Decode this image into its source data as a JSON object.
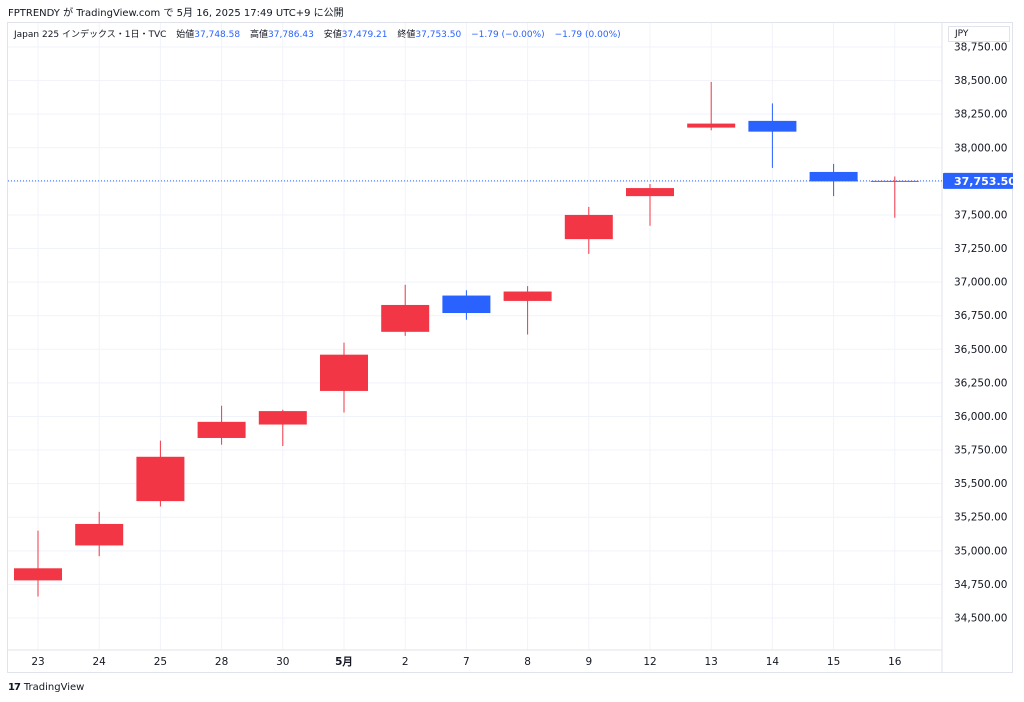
{
  "header": {
    "publish_line": "FPTRENDY が TradingView.com で 5月 16, 2025 17:49 UTC+9 に公開"
  },
  "legend": {
    "symbol": "Japan 225 インデックス・1日・TVC",
    "open_label": "始値",
    "open_value": "37,748.58",
    "high_label": "高値",
    "high_value": "37,786.43",
    "low_label": "安値",
    "low_value": "37,479.21",
    "close_label": "終値",
    "close_value": "37,753.50",
    "change": "−1.79 (−0.00%)",
    "change2": "−1.79 (0.00%)"
  },
  "currency_label": "JPY",
  "footer": {
    "brand": "TradingView",
    "logo": "17"
  },
  "colors": {
    "up": "#f23645",
    "down": "#2962ff",
    "grid": "#f0f3fa",
    "text": "#131722",
    "last_price_bg": "#2962ff"
  },
  "chart_data": {
    "type": "candlestick",
    "title": "Japan 225 インデックス・1日・TVC",
    "x_categories": [
      "23",
      "24",
      "25",
      "28",
      "30",
      "5月",
      "2",
      "7",
      "8",
      "9",
      "12",
      "13",
      "14",
      "15",
      "16"
    ],
    "x_tick_bold": [
      false,
      false,
      false,
      false,
      false,
      true,
      false,
      false,
      false,
      false,
      false,
      false,
      false,
      false,
      false
    ],
    "y_ticks": [
      34500,
      34750,
      35000,
      35250,
      35500,
      35750,
      36000,
      36250,
      36500,
      36750,
      37000,
      37250,
      37500,
      37750,
      38000,
      38250,
      38500,
      38750
    ],
    "y_tick_labels": [
      "34,500.00",
      "34,750.00",
      "35,000.00",
      "35,250.00",
      "35,500.00",
      "35,750.00",
      "36,000.00",
      "36,250.00",
      "36,500.00",
      "36,750.00",
      "37,000.00",
      "37,250.00",
      "37,500.00",
      "37,750.00",
      "38,000.00",
      "38,250.00",
      "38,500.00",
      "38,750.00"
    ],
    "ylim": [
      34500,
      38750
    ],
    "grid": true,
    "last_price": 37753.5,
    "last_price_label": "37,753.50",
    "candles": [
      {
        "o": 34780,
        "h": 35150,
        "l": 34660,
        "c": 34870
      },
      {
        "o": 35040,
        "h": 35290,
        "l": 34960,
        "c": 35200
      },
      {
        "o": 35370,
        "h": 35820,
        "l": 35330,
        "c": 35700
      },
      {
        "o": 35840,
        "h": 36080,
        "l": 35790,
        "c": 35960
      },
      {
        "o": 35940,
        "h": 36050,
        "l": 35780,
        "c": 36040
      },
      {
        "o": 36190,
        "h": 36550,
        "l": 36030,
        "c": 36460
      },
      {
        "o": 36630,
        "h": 36980,
        "l": 36600,
        "c": 36830
      },
      {
        "o": 36900,
        "h": 36940,
        "l": 36720,
        "c": 36770
      },
      {
        "o": 36860,
        "h": 36970,
        "l": 36610,
        "c": 36930
      },
      {
        "o": 37320,
        "h": 37560,
        "l": 37210,
        "c": 37500
      },
      {
        "o": 37640,
        "h": 37730,
        "l": 37420,
        "c": 37700
      },
      {
        "o": 38150,
        "h": 38490,
        "l": 38130,
        "c": 38180
      },
      {
        "o": 38200,
        "h": 38330,
        "l": 37850,
        "c": 38120
      },
      {
        "o": 37820,
        "h": 37880,
        "l": 37640,
        "c": 37750
      },
      {
        "o": 37748.58,
        "h": 37786.43,
        "l": 37479.21,
        "c": 37753.5
      }
    ]
  }
}
